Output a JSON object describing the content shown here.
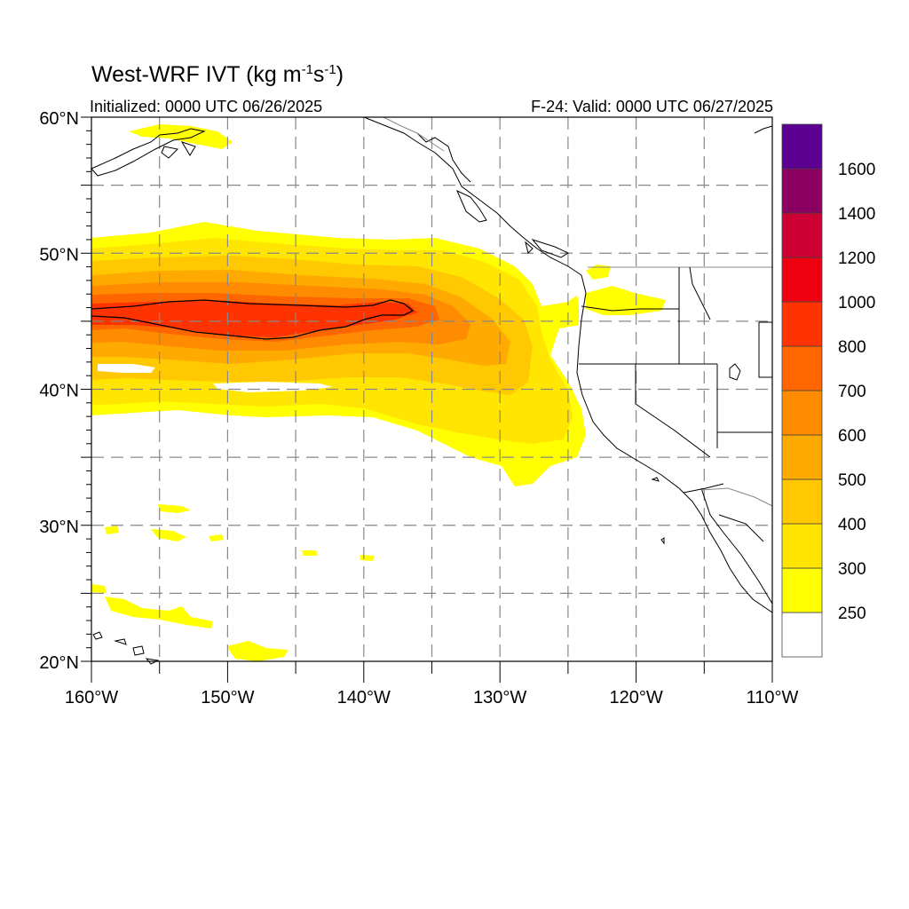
{
  "title": {
    "prefix": "West-WRF IVT (kg m",
    "exp1": "-1",
    "mid": "s",
    "exp2": "-1",
    "suffix": ")"
  },
  "initialized": "Initialized: 0000 UTC 06/26/2025",
  "valid": "F-24: Valid: 0000 UTC 06/27/2025",
  "map": {
    "lon_range": [
      -160,
      -110
    ],
    "lat_range": [
      20,
      60
    ],
    "lon_ticks": [
      {
        "value": -160,
        "label": "160°W"
      },
      {
        "value": -150,
        "label": "150°W"
      },
      {
        "value": -140,
        "label": "140°W"
      },
      {
        "value": -130,
        "label": "130°W"
      },
      {
        "value": -120,
        "label": "120°W"
      },
      {
        "value": -110,
        "label": "110°W"
      }
    ],
    "lat_ticks": [
      {
        "value": 60,
        "label": "60°N"
      },
      {
        "value": 50,
        "label": "50°N"
      },
      {
        "value": 40,
        "label": "40°N"
      },
      {
        "value": 30,
        "label": "30°N"
      },
      {
        "value": 20,
        "label": "20°N"
      }
    ],
    "grid_lon": [
      -155,
      -150,
      -145,
      -140,
      -135,
      -130,
      -125,
      -120,
      -115
    ],
    "grid_lat": [
      25,
      30,
      35,
      40,
      45,
      50,
      55
    ],
    "grid": "dashed",
    "land_color": "#ffffff",
    "coast_color": "#000000"
  },
  "colorbar": {
    "placement": "right",
    "levels": [
      {
        "label": "",
        "color": "#ffffff"
      },
      {
        "label": "250",
        "color": "#ffff00"
      },
      {
        "label": "300",
        "color": "#ffe500"
      },
      {
        "label": "400",
        "color": "#ffc800"
      },
      {
        "label": "500",
        "color": "#ffaa00"
      },
      {
        "label": "600",
        "color": "#ff8c00"
      },
      {
        "label": "700",
        "color": "#ff6600"
      },
      {
        "label": "800",
        "color": "#ff3300"
      },
      {
        "label": "1000",
        "color": "#ee0011"
      },
      {
        "label": "1200",
        "color": "#cc0033"
      },
      {
        "label": "1400",
        "color": "#8b0060"
      },
      {
        "label": "1600",
        "color": "#5b0090"
      }
    ]
  }
}
